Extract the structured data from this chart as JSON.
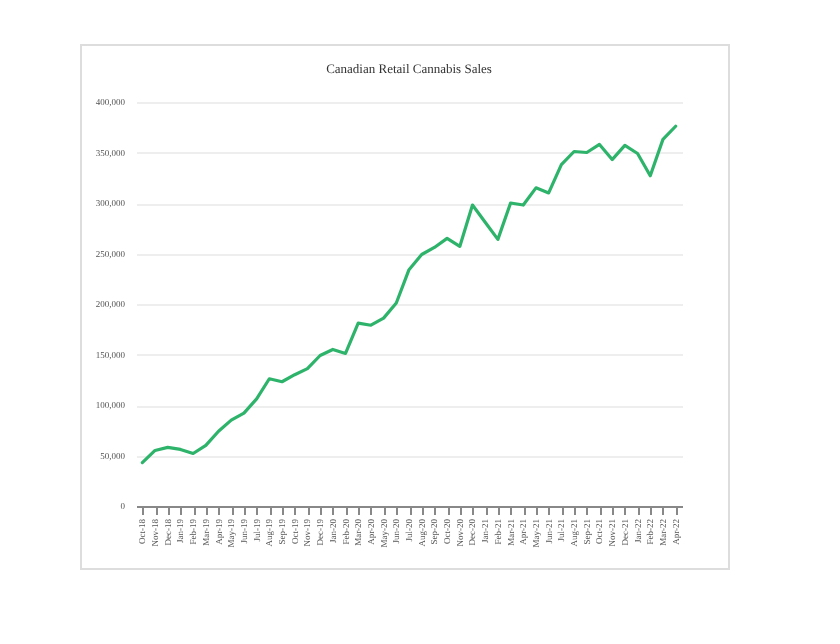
{
  "chart_data": {
    "type": "line",
    "title": "Canadian Retail Cannabis Sales",
    "categories": [
      "Oct-18",
      "Nov-18",
      "Dec-18",
      "Jan-19",
      "Feb-19",
      "Mar-19",
      "Apr-19",
      "May-19",
      "Jun-19",
      "Jul-19",
      "Aug-19",
      "Sep-19",
      "Oct-19",
      "Nov-19",
      "Dec-19",
      "Jan-20",
      "Feb-20",
      "Mar-20",
      "Apr-20",
      "May-20",
      "Jun-20",
      "Jul-20",
      "Aug-20",
      "Sep-20",
      "Oct-20",
      "Nov-20",
      "Dec-20",
      "Jan-21",
      "Feb-21",
      "Mar-21",
      "Apr-21",
      "May-21",
      "Jun-21",
      "Jul-21",
      "Aug-21",
      "Sep-21",
      "Oct-21",
      "Nov-21",
      "Dec-21",
      "Jan-22",
      "Feb-22",
      "Mar-22",
      "Apr-22"
    ],
    "series": [
      {
        "color": "#2eb36b",
        "values": [
          43000,
          55000,
          58000,
          56000,
          52000,
          60000,
          74000,
          85000,
          92000,
          106000,
          126000,
          123000,
          130000,
          136000,
          149000,
          155000,
          151000,
          181000,
          179000,
          186000,
          201000,
          234000,
          249000,
          256000,
          265000,
          257000,
          298000,
          281000,
          264000,
          300000,
          298000,
          315000,
          310000,
          338000,
          351000,
          350000,
          358000,
          343000,
          357000,
          349000,
          327000,
          363000,
          376000
        ]
      }
    ],
    "ylim": [
      0,
      400000
    ],
    "yticks": [
      0,
      {
        "value": 50000,
        "label": "50,000"
      },
      {
        "value": 100000,
        "label": "100,000"
      },
      {
        "value": 150000,
        "label": "150,000"
      },
      {
        "value": 200000,
        "label": "200,000"
      },
      {
        "value": 250000,
        "label": "250,000"
      },
      {
        "value": 300000,
        "label": "300,000"
      },
      {
        "value": 350000,
        "label": "350,000"
      },
      {
        "value": 400000,
        "label": "400,000"
      }
    ],
    "grid": "y",
    "marker": "none",
    "line_style": "solid"
  }
}
